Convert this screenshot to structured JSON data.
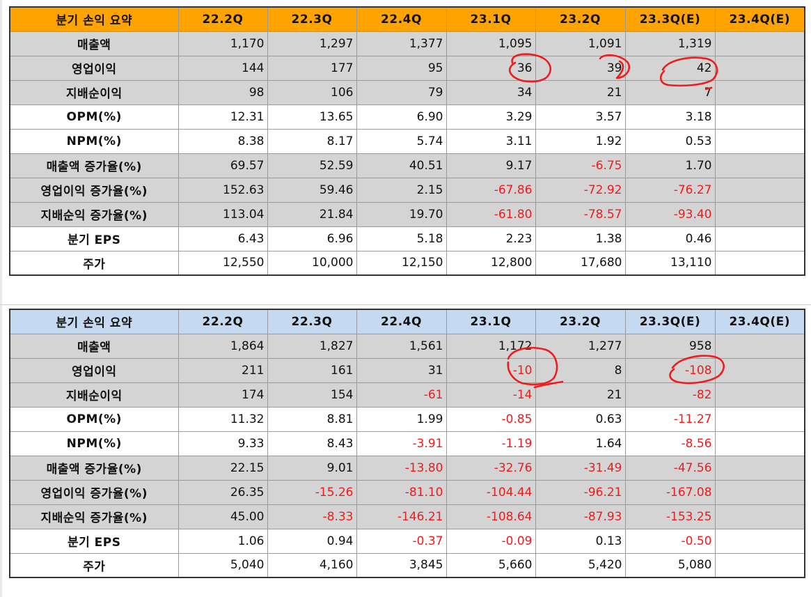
{
  "columns": [
    "분기 손익 요약",
    "22.2Q",
    "22.3Q",
    "22.4Q",
    "23.1Q",
    "23.2Q",
    "23.3Q(E)",
    "23.4Q(E)"
  ],
  "colors": {
    "header1": "#ffa300",
    "header2": "#c5d9f0",
    "gray_row": "#d4d4d4",
    "negative": "#ee1c1c",
    "annotation": "#ee1c1c"
  },
  "tables": [
    {
      "rows": [
        {
          "label": "매출액",
          "shade": "gray",
          "values": [
            "1,170",
            "1,297",
            "1,377",
            "1,095",
            "1,091",
            "1,319",
            ""
          ]
        },
        {
          "label": "영업이익",
          "shade": "gray",
          "values": [
            "144",
            "177",
            "95",
            "36",
            "39",
            "42",
            ""
          ]
        },
        {
          "label": "지배순이익",
          "shade": "gray",
          "values": [
            "98",
            "106",
            "79",
            "34",
            "21",
            "7",
            ""
          ]
        },
        {
          "label": "OPM(%)",
          "shade": "white",
          "values": [
            "12.31",
            "13.65",
            "6.90",
            "3.29",
            "3.57",
            "3.18",
            ""
          ]
        },
        {
          "label": "NPM(%)",
          "shade": "white",
          "values": [
            "8.38",
            "8.17",
            "5.74",
            "3.11",
            "1.92",
            "0.53",
            ""
          ]
        },
        {
          "label": "매출액 증가율(%)",
          "shade": "gray",
          "values": [
            "69.57",
            "52.59",
            "40.51",
            "9.17",
            "-6.75",
            "1.70",
            ""
          ]
        },
        {
          "label": "영업이익 증가율(%)",
          "shade": "gray",
          "values": [
            "152.63",
            "59.46",
            "2.15",
            "-67.86",
            "-72.92",
            "-76.27",
            ""
          ]
        },
        {
          "label": "지배순익 증가율(%)",
          "shade": "gray",
          "values": [
            "113.04",
            "21.84",
            "19.70",
            "-61.80",
            "-78.57",
            "-93.40",
            ""
          ]
        },
        {
          "label": "분기 EPS",
          "shade": "white",
          "values": [
            "6.43",
            "6.96",
            "5.18",
            "2.23",
            "1.38",
            "0.46",
            ""
          ]
        },
        {
          "label": "주가",
          "shade": "white",
          "values": [
            "12,550",
            "10,000",
            "12,150",
            "12,800",
            "17,680",
            "13,110",
            ""
          ]
        }
      ]
    },
    {
      "rows": [
        {
          "label": "매출액",
          "shade": "gray",
          "values": [
            "1,864",
            "1,827",
            "1,561",
            "1,172",
            "1,277",
            "958",
            ""
          ]
        },
        {
          "label": "영업이익",
          "shade": "gray",
          "values": [
            "211",
            "161",
            "31",
            "-10",
            "8",
            "-108",
            ""
          ]
        },
        {
          "label": "지배순이익",
          "shade": "gray",
          "values": [
            "174",
            "154",
            "-61",
            "-14",
            "21",
            "-82",
            ""
          ]
        },
        {
          "label": "OPM(%)",
          "shade": "white",
          "values": [
            "11.32",
            "8.81",
            "1.99",
            "-0.85",
            "0.63",
            "-11.27",
            ""
          ]
        },
        {
          "label": "NPM(%)",
          "shade": "white",
          "values": [
            "9.33",
            "8.43",
            "-3.91",
            "-1.19",
            "1.64",
            "-8.56",
            ""
          ]
        },
        {
          "label": "매출액 증가율(%)",
          "shade": "gray",
          "values": [
            "22.15",
            "9.01",
            "-13.80",
            "-32.76",
            "-31.49",
            "-47.56",
            ""
          ]
        },
        {
          "label": "영업이익 증가율(%)",
          "shade": "gray",
          "values": [
            "26.35",
            "-15.26",
            "-81.10",
            "-104.44",
            "-96.21",
            "-167.08",
            ""
          ]
        },
        {
          "label": "지배순익 증가율(%)",
          "shade": "gray",
          "values": [
            "45.00",
            "-8.33",
            "-146.21",
            "-108.64",
            "-87.93",
            "-153.25",
            ""
          ]
        },
        {
          "label": "분기 EPS",
          "shade": "white",
          "values": [
            "1.06",
            "0.94",
            "-0.37",
            "-0.09",
            "0.13",
            "-0.50",
            ""
          ]
        },
        {
          "label": "주가",
          "shade": "white",
          "values": [
            "5,040",
            "4,160",
            "3,845",
            "5,660",
            "5,420",
            "5,080",
            ""
          ]
        }
      ]
    }
  ]
}
